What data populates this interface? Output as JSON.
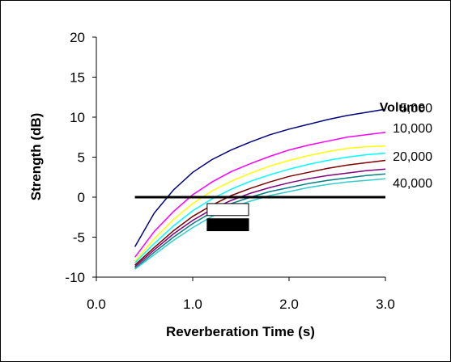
{
  "chart_data": {
    "type": "line",
    "title": "",
    "xlabel": "Reverberation Time (s)",
    "ylabel": "Strength (dB)",
    "xlim": [
      0.0,
      3.0
    ],
    "ylim": [
      -10,
      20
    ],
    "x_ticks": [
      "0.0",
      "1.0",
      "2.0",
      "3.0"
    ],
    "y_ticks": [
      "-10",
      "-5",
      "0",
      "5",
      "10",
      "15",
      "20"
    ],
    "grid": false,
    "legend_title": "Volume",
    "x": [
      0.4,
      0.6,
      0.8,
      1.0,
      1.2,
      1.4,
      1.6,
      1.8,
      2.0,
      2.2,
      2.4,
      2.6,
      2.8,
      3.0
    ],
    "series": [
      {
        "name": "5,000",
        "color": "#000080",
        "values": [
          -6.2,
          -2.0,
          0.9,
          3.1,
          4.7,
          5.9,
          6.9,
          7.8,
          8.5,
          9.1,
          9.7,
          10.2,
          10.6,
          11.0
        ]
      },
      {
        "name": "",
        "color": "#FF00FF",
        "values": [
          -7.5,
          -4.3,
          -1.8,
          0.3,
          1.9,
          3.2,
          4.2,
          5.1,
          5.9,
          6.5,
          7.0,
          7.5,
          7.8,
          8.1
        ]
      },
      {
        "name": "10,000",
        "color": "#FFFF00",
        "values": [
          -8.0,
          -5.2,
          -2.8,
          -0.8,
          0.8,
          2.0,
          3.0,
          3.9,
          4.6,
          5.2,
          5.7,
          6.1,
          6.3,
          6.4
        ]
      },
      {
        "name": "",
        "color": "#00FFFF",
        "values": [
          -8.2,
          -5.8,
          -3.6,
          -1.7,
          -0.2,
          1.0,
          2.0,
          2.8,
          3.5,
          4.1,
          4.6,
          5.0,
          5.3,
          5.5
        ]
      },
      {
        "name": "20,000",
        "color": "#800000",
        "values": [
          -8.5,
          -6.3,
          -4.2,
          -2.4,
          -1.0,
          0.2,
          1.1,
          1.9,
          2.6,
          3.1,
          3.6,
          4.0,
          4.3,
          4.6
        ]
      },
      {
        "name": "",
        "color": "#800080",
        "values": [
          -8.7,
          -6.6,
          -4.6,
          -2.9,
          -1.5,
          -0.4,
          0.5,
          1.2,
          1.8,
          2.3,
          2.7,
          3.0,
          3.3,
          3.5
        ]
      },
      {
        "name": "40,000",
        "color": "#008080",
        "values": [
          -8.9,
          -6.9,
          -5.0,
          -3.3,
          -1.9,
          -0.8,
          0.0,
          0.7,
          1.2,
          1.7,
          2.1,
          2.4,
          2.7,
          2.9
        ]
      },
      {
        "name": "",
        "color": "#33CCCC",
        "values": [
          -9.0,
          -7.2,
          -5.4,
          -3.8,
          -2.4,
          -1.3,
          -0.5,
          0.2,
          0.7,
          1.2,
          1.6,
          1.9,
          2.1,
          2.3
        ]
      }
    ],
    "annotations": {
      "zero_line": {
        "y": 0,
        "x_from": 0.4,
        "x_to": 3.0,
        "color": "#000000"
      },
      "boxes": [
        {
          "x_from": 1.15,
          "x_to": 1.58,
          "y_from": -2.3,
          "y_to": -0.8,
          "fill": "#FFFFFF",
          "stroke": "#000000"
        },
        {
          "x_from": 1.15,
          "x_to": 1.58,
          "y_from": -4.2,
          "y_to": -2.7,
          "fill": "#000000",
          "stroke": "#000000"
        }
      ]
    }
  }
}
